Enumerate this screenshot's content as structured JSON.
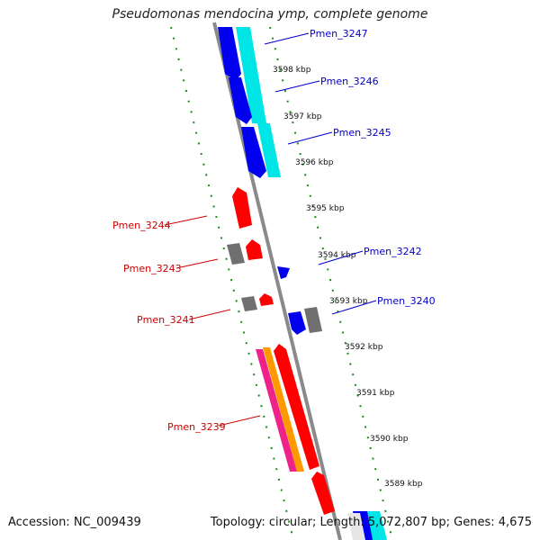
{
  "title": "Pseudomonas mendocina ymp, complete genome",
  "footer": {
    "accession": "Accession: NC_009439",
    "summary": "Topology: circular; Length: 5,072,807 bp; Genes: 4,675"
  },
  "colors": {
    "backbone": "#8a8a8a",
    "grid_dash": "#1a8a1a",
    "cds_forward": "#0000ee",
    "cds_reverse": "#ff0000",
    "rna_like": "#00e5e5",
    "pseudo_gray": "#707070",
    "orange": "#ff9900",
    "magenta": "#ee2288",
    "label_forward": "#0000cc",
    "label_reverse": "#cc0000"
  },
  "ticks": [
    "3598 kbp",
    "3597 kbp",
    "3596 kbp",
    "3595 kbp",
    "3594 kbp",
    "3593 kbp",
    "3592 kbp",
    "3591 kbp",
    "3590 kbp",
    "3589 kbp"
  ],
  "labels_forward": [
    "Pmen_3247",
    "Pmen_3246",
    "Pmen_3245",
    "Pmen_3242",
    "Pmen_3240"
  ],
  "labels_reverse": [
    "Pmen_3244",
    "Pmen_3243",
    "Pmen_3241",
    "Pmen_3239"
  ]
}
